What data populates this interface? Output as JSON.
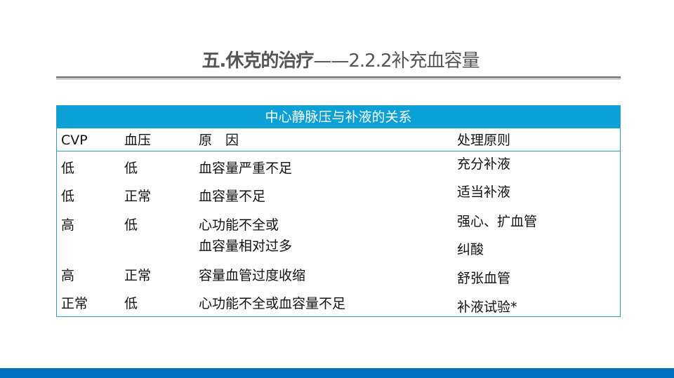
{
  "title": {
    "bold": "五.休克的治疗",
    "light": "——2.2.2补充血容量"
  },
  "table": {
    "caption": "中心静脉压与补液的关系",
    "headers": [
      "CVP",
      "血压",
      "原　因",
      "处理原则"
    ],
    "rows": [
      {
        "cvp": "低",
        "bp": "低",
        "cause": "血容量严重不足",
        "treatment": "充分补液"
      },
      {
        "cvp": "低",
        "bp": "正常",
        "cause": "血容量不足",
        "treatment": "适当补液"
      },
      {
        "cvp": "高",
        "bp": "低",
        "cause": "心功能不全或",
        "cause2": "血容量相对过多",
        "treatment": "强心、扩血管",
        "treatment2": "纠酸"
      },
      {
        "cvp": "高",
        "bp": "正常",
        "cause": "容量血管过度收缩",
        "treatment": "舒张血管"
      },
      {
        "cvp": "正常",
        "bp": "低",
        "cause": "心功能不全或血容量不足",
        "treatment": "补液试验*"
      }
    ]
  },
  "colors": {
    "header_bg": "#0ba0d6",
    "bottom_bar": "#0070c0",
    "title": "#555555"
  }
}
